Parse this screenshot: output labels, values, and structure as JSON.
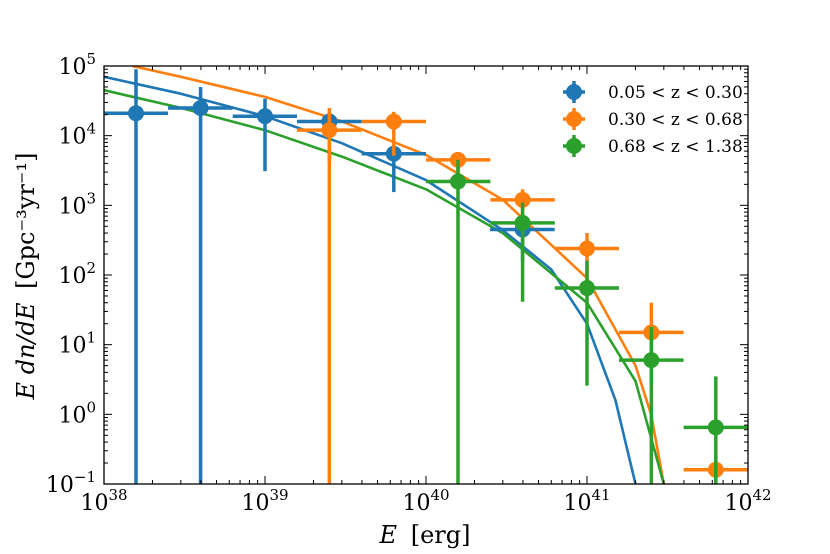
{
  "chart_data": {
    "type": "scatter",
    "xlabel_var": "E",
    "xlabel_unit": "[erg]",
    "ylabel_var": "E dn/dE",
    "ylabel_unit": "[Gpc⁻³yr⁻¹]",
    "xscale": "log",
    "yscale": "log",
    "xlim": [
      1e+38,
      1e+42
    ],
    "ylim": [
      0.1,
      100000
    ],
    "x_ticks": [
      {
        "value": 1e+38,
        "base": "10",
        "exp": "38"
      },
      {
        "value": 1e+39,
        "base": "10",
        "exp": "39"
      },
      {
        "value": 1e+40,
        "base": "10",
        "exp": "40"
      },
      {
        "value": 1e+41,
        "base": "10",
        "exp": "41"
      },
      {
        "value": 1e+42,
        "base": "10",
        "exp": "42"
      }
    ],
    "y_ticks": [
      {
        "value": 0.1,
        "base": "10",
        "exp": "−1"
      },
      {
        "value": 1,
        "base": "10",
        "exp": "0"
      },
      {
        "value": 10,
        "base": "10",
        "exp": "1"
      },
      {
        "value": 100,
        "base": "10",
        "exp": "2"
      },
      {
        "value": 1000,
        "base": "10",
        "exp": "3"
      },
      {
        "value": 10000,
        "base": "10",
        "exp": "4"
      },
      {
        "value": 100000,
        "base": "10",
        "exp": "5"
      }
    ],
    "grid": false,
    "legend_position": "top-right",
    "series": [
      {
        "name": "0.05 < z < 0.30",
        "color": "#1f77b4",
        "points": [
          {
            "x": 1.58e+38,
            "xerr": [
              1e+38,
              2.5e+38
            ],
            "y": 21000,
            "yerr": [
              0.05,
              90000
            ]
          },
          {
            "x": 3.98e+38,
            "xerr": [
              2.5e+38,
              6.3e+38
            ],
            "y": 25000,
            "yerr": [
              0.05,
              50000
            ]
          },
          {
            "x": 1e+39,
            "xerr": [
              6.3e+38,
              1.58e+39
            ],
            "y": 19000,
            "yerr": [
              6000,
              34000
            ]
          },
          {
            "x": 2.51e+39,
            "xerr": [
              1.58e+39,
              3.98e+39
            ],
            "y": 16000,
            "yerr": [
              8000,
              22000
            ]
          },
          {
            "x": 6.31e+39,
            "xerr": [
              3.98e+39,
              1e+40
            ],
            "y": 5500,
            "yerr": [
              3000,
              8000
            ]
          },
          {
            "x": 3.98e+40,
            "xerr": [
              2.5e+40,
              6.3e+40
            ],
            "y": 450,
            "yerr": [
              300,
              550
            ]
          }
        ],
        "curve": {
          "x": [
            1e+38,
            3e+38,
            1e+39,
            3e+39,
            1e+40,
            3e+40,
            6e+40,
            1e+41,
            1.5e+41,
            2e+41
          ],
          "y": [
            70000,
            40000,
            19000,
            7800,
            2300,
            440,
            120,
            20,
            1.6,
            0.1
          ]
        }
      },
      {
        "name": "0.30 < z < 0.68",
        "color": "#ff7f0e",
        "points": [
          {
            "x": 2.51e+39,
            "xerr": [
              1.58e+39,
              3.98e+39
            ],
            "y": 12000,
            "yerr": [
              0.05,
              25000
            ]
          },
          {
            "x": 6.31e+39,
            "xerr": [
              3.98e+39,
              1e+40
            ],
            "y": 16000,
            "yerr": [
              10000,
              22000
            ]
          },
          {
            "x": 1.58e+40,
            "xerr": [
              1e+40,
              2.51e+40
            ],
            "y": 4500,
            "yerr": [
              3500,
              5500
            ]
          },
          {
            "x": 3.98e+40,
            "xerr": [
              2.51e+40,
              6.31e+40
            ],
            "y": 1200,
            "yerr": [
              800,
              1700
            ]
          },
          {
            "x": 1e+41,
            "xerr": [
              6.31e+40,
              1.58e+41
            ],
            "y": 240,
            "yerr": [
              140,
              400
            ]
          },
          {
            "x": 2.51e+41,
            "xerr": [
              1.58e+41,
              3.98e+41
            ],
            "y": 15,
            "yerr": [
              5,
              40
            ]
          },
          {
            "x": 6.31e+41,
            "xerr": [
              3.98e+41,
              1e+42
            ],
            "y": 0.16,
            "yerr": [
              0.1,
              0.25
            ]
          }
        ],
        "curve": {
          "x": [
            1.5e+38,
            3e+38,
            1e+39,
            3e+39,
            1e+40,
            3e+40,
            1e+41,
            2e+41,
            2.5e+41,
            3e+41
          ],
          "y": [
            100000,
            70000,
            36000,
            16000,
            5300,
            1200,
            90,
            5,
            1,
            0.1
          ]
        }
      },
      {
        "name": "0.68 < z < 1.38",
        "color": "#2ca02c",
        "points": [
          {
            "x": 1.58e+40,
            "xerr": [
              1e+40,
              2.51e+40
            ],
            "y": 2200,
            "yerr": [
              0.05,
              4500
            ]
          },
          {
            "x": 3.98e+40,
            "xerr": [
              2.51e+40,
              6.31e+40
            ],
            "y": 560,
            "yerr": [
              80,
              1100
            ]
          },
          {
            "x": 1e+41,
            "xerr": [
              6.31e+40,
              1.58e+41
            ],
            "y": 65,
            "yerr": [
              5,
              160
            ]
          },
          {
            "x": 2.51e+41,
            "xerr": [
              1.58e+41,
              3.98e+41
            ],
            "y": 6,
            "yerr": [
              0.05,
              18
            ]
          },
          {
            "x": 6.31e+41,
            "xerr": [
              3.98e+41,
              1e+42
            ],
            "y": 0.65,
            "yerr": [
              0.08,
              3.5
            ]
          }
        ],
        "curve": {
          "x": [
            1e+38,
            3e+38,
            1e+39,
            3e+39,
            1e+40,
            3e+40,
            1e+41,
            2e+41,
            3e+41
          ],
          "y": [
            45000,
            25000,
            12000,
            5000,
            1700,
            400,
            40,
            3,
            0.1
          ]
        }
      }
    ]
  }
}
